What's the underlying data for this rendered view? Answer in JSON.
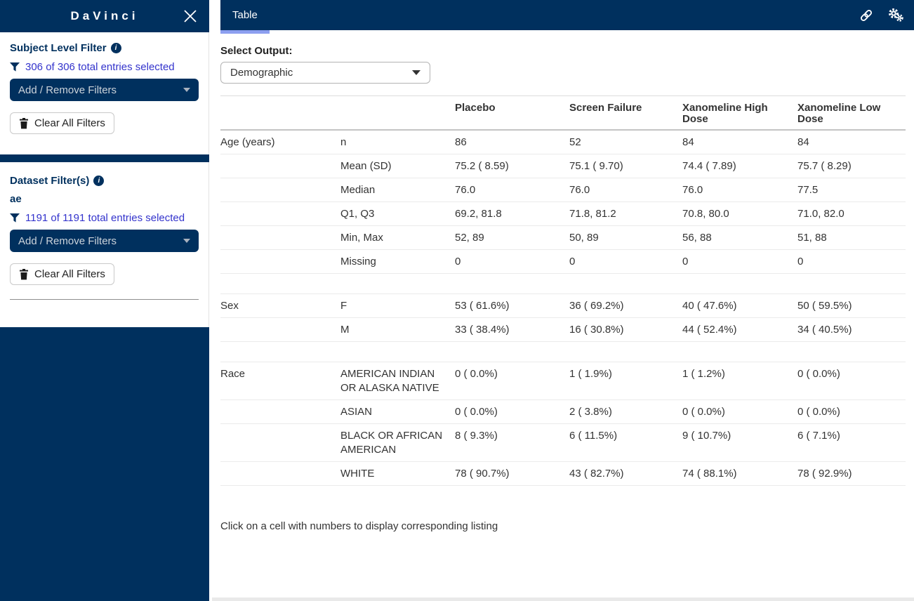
{
  "sidebar": {
    "title": "DaVinci",
    "subject_filter": {
      "title": "Subject Level Filter",
      "summary": "306 of 306 total entries selected",
      "dropdown_label": "Add / Remove Filters",
      "clear_label": "Clear All Filters"
    },
    "dataset_filter": {
      "title": "Dataset Filter(s)",
      "dataset_name": "ae",
      "summary": "1191 of 1191 total entries selected",
      "dropdown_label": "Add / Remove Filters",
      "clear_label": "Clear All Filters"
    }
  },
  "topbar": {
    "tabs": [
      {
        "label": "Table",
        "active": true
      }
    ],
    "icons": [
      "link-icon",
      "gears-icon"
    ]
  },
  "main": {
    "select_output_label": "Select Output:",
    "selected_output": "Demographic",
    "footer_note": "Click on a cell with numbers to display corresponding listing"
  },
  "table": {
    "columns": [
      "",
      "",
      "Placebo",
      "Screen Failure",
      "Xanomeline High Dose",
      "Xanomeline Low Dose"
    ],
    "rows": [
      {
        "cells": [
          "Age (years)",
          "n",
          "86",
          "52",
          "84",
          "84"
        ]
      },
      {
        "cells": [
          "",
          "Mean (SD)",
          "75.2 ( 8.59)",
          "75.1 ( 9.70)",
          "74.4 ( 7.89)",
          "75.7 ( 8.29)"
        ]
      },
      {
        "cells": [
          "",
          "Median",
          "76.0",
          "76.0",
          "76.0",
          "77.5"
        ]
      },
      {
        "cells": [
          "",
          "Q1, Q3",
          "69.2, 81.8",
          "71.8, 81.2",
          "70.8, 80.0",
          "71.0, 82.0"
        ]
      },
      {
        "cells": [
          "",
          "Min, Max",
          "52, 89",
          "50, 89",
          "56, 88",
          "51, 88"
        ]
      },
      {
        "cells": [
          "",
          "Missing",
          "0",
          "0",
          "0",
          "0"
        ]
      },
      {
        "spacer": true
      },
      {
        "cells": [
          "Sex",
          "F",
          "53 ( 61.6%)",
          "36 ( 69.2%)",
          "40 ( 47.6%)",
          "50 ( 59.5%)"
        ]
      },
      {
        "cells": [
          "",
          "M",
          "33 ( 38.4%)",
          "16 ( 30.8%)",
          "44 ( 52.4%)",
          "34 ( 40.5%)"
        ]
      },
      {
        "spacer": true
      },
      {
        "cells": [
          "Race",
          "AMERICAN INDIAN OR ALASKA NATIVE",
          "0 ( 0.0%)",
          "1 ( 1.9%)",
          "1 ( 1.2%)",
          "0 ( 0.0%)"
        ]
      },
      {
        "cells": [
          "",
          "ASIAN",
          "0 ( 0.0%)",
          "2 ( 3.8%)",
          "0 ( 0.0%)",
          "0 ( 0.0%)"
        ]
      },
      {
        "cells": [
          "",
          "BLACK OR AFRICAN AMERICAN",
          "8 ( 9.3%)",
          "6 ( 11.5%)",
          "9 ( 10.7%)",
          "6 ( 7.1%)"
        ]
      },
      {
        "cells": [
          "",
          "WHITE",
          "78 ( 90.7%)",
          "43 ( 82.7%)",
          "74 ( 88.1%)",
          "78 ( 92.9%)"
        ]
      }
    ]
  },
  "colors": {
    "navy": "#00305e",
    "tab_underline": "#8c9ff0",
    "filter_link_blue": "#3333cc"
  }
}
